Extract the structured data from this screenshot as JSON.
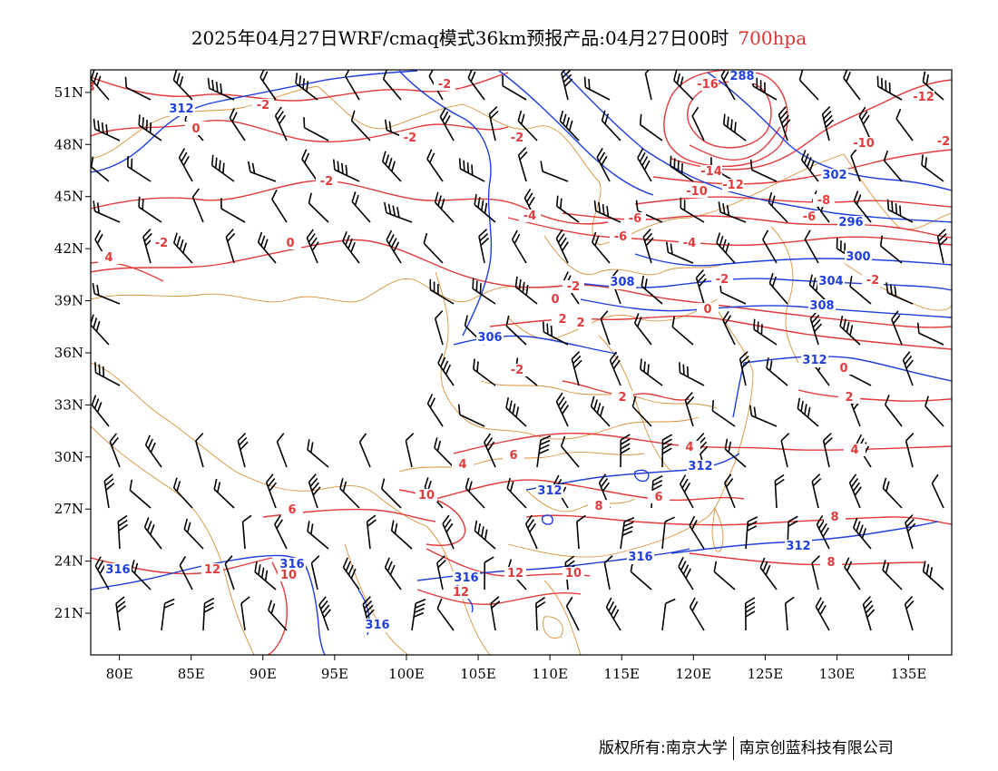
{
  "title": {
    "main": "2025年04月27日WRF/cmaq模式36km预报产品:04月27日00时",
    "level": "700hpa"
  },
  "colors": {
    "height_contour": "#1f3fdc",
    "temperature_contour": "#e23b3b",
    "border": "#d9913a",
    "wind_barb": "#000000"
  },
  "map": {
    "lon_range": [
      78,
      138
    ],
    "lat_range": [
      18.6,
      52.3
    ],
    "lon_ticks": [
      "80E",
      "85E",
      "90E",
      "95E",
      "100E",
      "105E",
      "110E",
      "115E",
      "120E",
      "125E",
      "130E",
      "135E"
    ],
    "lat_ticks": [
      "51N",
      "48N",
      "45N",
      "42N",
      "39N",
      "36N",
      "33N",
      "30N",
      "27N",
      "24N",
      "21N"
    ]
  },
  "height_labels": [
    "288",
    "312",
    "302",
    "296",
    "308",
    "300",
    "304",
    "308",
    "306",
    "312",
    "312",
    "312",
    "312",
    "316",
    "316",
    "316",
    "316",
    "316",
    "316"
  ],
  "temp_labels": [
    "-2",
    "-2",
    "-16",
    "-12",
    "-2",
    "0",
    "0",
    "-2",
    "-10",
    "-14",
    "-10",
    "-12",
    "-2",
    "-4",
    "-6",
    "-8",
    "-6",
    "-2",
    "0",
    "-2",
    "-4",
    "0",
    "-2",
    "-6",
    "0",
    "-2",
    "2",
    "4",
    "2",
    "2",
    "-2",
    "0",
    "-2",
    "4",
    "2",
    "6",
    "4",
    "10",
    "6",
    "6",
    "8",
    "8",
    "4",
    "8",
    "8",
    "12",
    "10",
    "12",
    "10",
    "12"
  ],
  "footer": {
    "left": "版权所有:南京大学",
    "right": "南京创蓝科技有限公司"
  }
}
